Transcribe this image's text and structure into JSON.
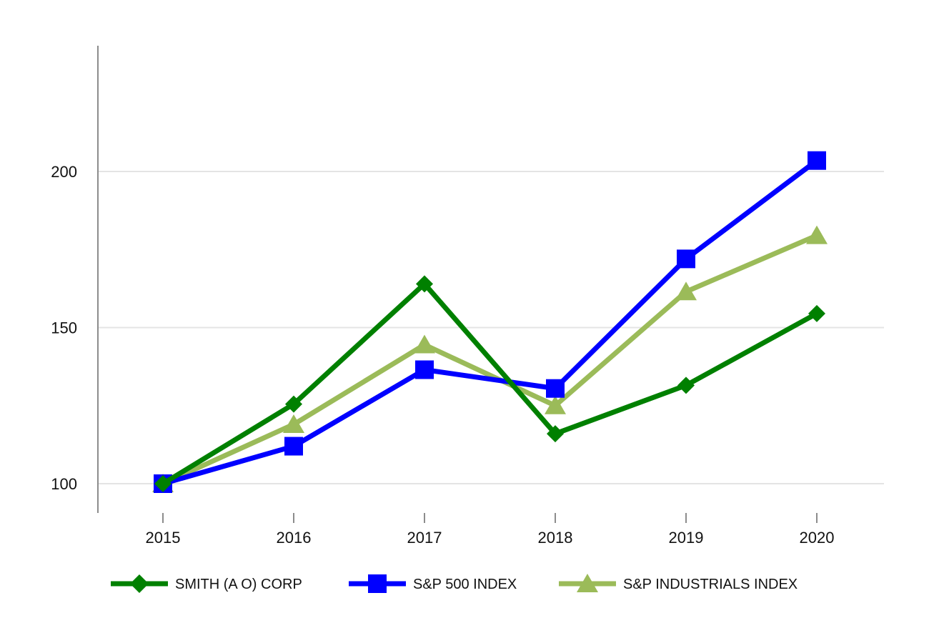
{
  "chart_data": {
    "type": "line",
    "title": "",
    "xlabel": "",
    "ylabel": "",
    "categories": [
      "2015",
      "2016",
      "2017",
      "2018",
      "2019",
      "2020"
    ],
    "ylim": [
      90,
      240
    ],
    "yticks": [
      100,
      150,
      200
    ],
    "grid": true,
    "legend_position": "bottom",
    "series": [
      {
        "name": "SMITH (A O) CORP",
        "color": "#008000",
        "marker": "diamond",
        "values": [
          100,
          125.5,
          164,
          116,
          131.5,
          154.5
        ]
      },
      {
        "name": "S&P 500 INDEX",
        "color": "#0000ff",
        "marker": "square",
        "values": [
          100,
          112,
          136.5,
          130.5,
          172,
          203.5
        ]
      },
      {
        "name": "S&P INDUSTRIALS INDEX",
        "color": "#9bbb59",
        "marker": "triangle",
        "values": [
          100,
          119,
          144.5,
          125,
          161.5,
          179.5
        ]
      }
    ]
  }
}
